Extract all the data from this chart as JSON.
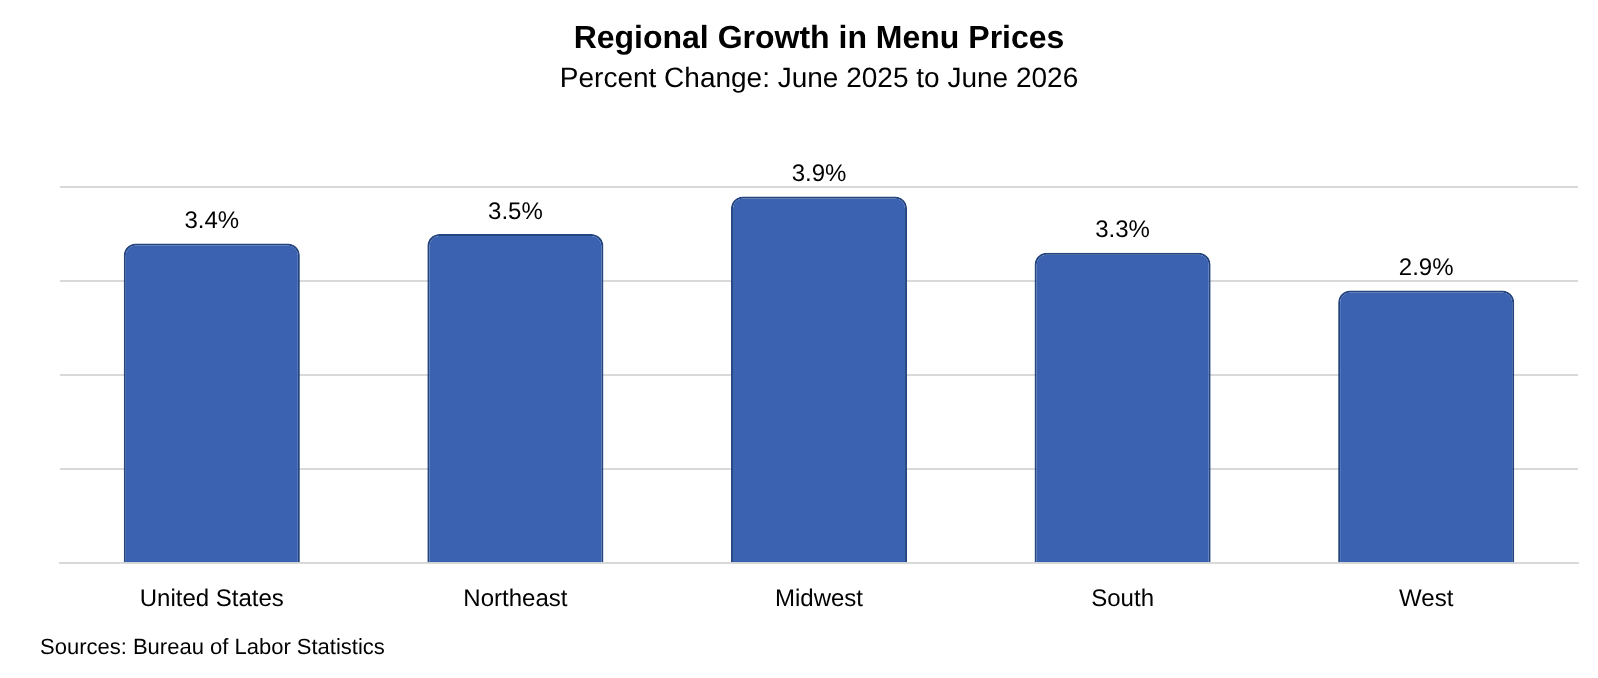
{
  "chart_data": {
    "type": "bar",
    "title": "Regional Growth in Menu Prices",
    "subtitle": "Percent Change: June 2025 to June 2026",
    "categories": [
      "United States",
      "Northeast",
      "Midwest",
      "South",
      "West"
    ],
    "values": [
      3.4,
      3.5,
      3.9,
      3.3,
      2.9
    ],
    "color": "#3a62b0",
    "value_labels": [
      "3.4%",
      "3.5%",
      "3.9%",
      "3.3%",
      "2.9%"
    ],
    "yticks": [
      {
        "value": 0,
        "label": null
      },
      {
        "value": 1,
        "label": null
      },
      {
        "value": 2,
        "label": null
      },
      {
        "value": 3,
        "label": null
      },
      {
        "value": 4,
        "label": null
      }
    ],
    "grid": "y",
    "tick_labels": "x",
    "annotations": [
      "Sources: Bureau of Labor Statistics"
    ]
  }
}
